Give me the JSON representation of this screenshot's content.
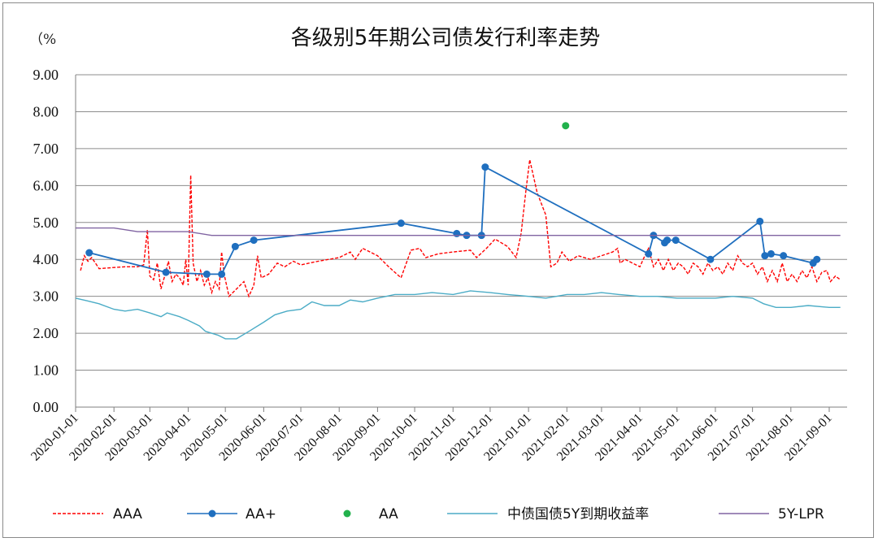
{
  "chart_data": {
    "type": "line",
    "title": "各级别5年期公司债发行利率走势",
    "unit_label": "（%",
    "ylim": [
      0,
      9
    ],
    "yticks": [
      "0.00",
      "1.00",
      "2.00",
      "3.00",
      "4.00",
      "5.00",
      "6.00",
      "7.00",
      "8.00",
      "9.00"
    ],
    "x_tick_labels": [
      "2020-01-01",
      "2020-02-01",
      "2020-03-01",
      "2020-04-01",
      "2020-05-01",
      "2020-06-01",
      "2020-07-01",
      "2020-08-01",
      "2020-09-01",
      "2020-10-01",
      "2020-11-01",
      "2020-12-01",
      "2021-01-01",
      "2021-02-01",
      "2021-03-01",
      "2021-04-01",
      "2021-05-01",
      "2021-06-01",
      "2021-07-01",
      "2021-08-01",
      "2021-09-01"
    ],
    "x_range": [
      "2020-01-01",
      "2021-09-01"
    ],
    "grid": "horizontal",
    "legend_position": "bottom",
    "series": [
      {
        "name": "AAA",
        "style": "dashed",
        "color": "#ff0000",
        "points": [
          [
            "2020-01-05",
            3.7
          ],
          [
            "2020-01-08",
            4.1
          ],
          [
            "2020-01-11",
            3.95
          ],
          [
            "2020-01-14",
            4.05
          ],
          [
            "2020-01-17",
            3.9
          ],
          [
            "2020-01-20",
            3.75
          ],
          [
            "2020-02-01",
            3.78
          ],
          [
            "2020-02-10",
            3.8
          ],
          [
            "2020-02-20",
            3.8
          ],
          [
            "2020-02-25",
            3.85
          ],
          [
            "2020-02-28",
            4.8
          ],
          [
            "2020-03-01",
            3.55
          ],
          [
            "2020-03-04",
            3.45
          ],
          [
            "2020-03-07",
            3.9
          ],
          [
            "2020-03-10",
            3.2
          ],
          [
            "2020-03-13",
            3.55
          ],
          [
            "2020-03-16",
            3.95
          ],
          [
            "2020-03-19",
            3.4
          ],
          [
            "2020-03-22",
            3.6
          ],
          [
            "2020-03-25",
            3.5
          ],
          [
            "2020-03-28",
            3.3
          ],
          [
            "2020-03-30",
            4.0
          ],
          [
            "2020-04-01",
            3.3
          ],
          [
            "2020-04-03",
            6.28
          ],
          [
            "2020-04-05",
            3.9
          ],
          [
            "2020-04-08",
            3.4
          ],
          [
            "2020-04-11",
            3.7
          ],
          [
            "2020-04-14",
            3.3
          ],
          [
            "2020-04-17",
            3.5
          ],
          [
            "2020-04-20",
            3.1
          ],
          [
            "2020-04-23",
            3.4
          ],
          [
            "2020-04-26",
            3.2
          ],
          [
            "2020-04-28",
            4.2
          ],
          [
            "2020-04-30",
            3.6
          ],
          [
            "2020-05-04",
            3.0
          ],
          [
            "2020-05-10",
            3.2
          ],
          [
            "2020-05-16",
            3.4
          ],
          [
            "2020-05-20",
            3.0
          ],
          [
            "2020-05-24",
            3.3
          ],
          [
            "2020-05-27",
            4.1
          ],
          [
            "2020-05-30",
            3.5
          ],
          [
            "2020-06-05",
            3.6
          ],
          [
            "2020-06-12",
            3.9
          ],
          [
            "2020-06-18",
            3.8
          ],
          [
            "2020-06-25",
            3.95
          ],
          [
            "2020-07-01",
            3.85
          ],
          [
            "2020-07-15",
            3.95
          ],
          [
            "2020-08-01",
            4.05
          ],
          [
            "2020-08-10",
            4.2
          ],
          [
            "2020-08-14",
            4.0
          ],
          [
            "2020-08-20",
            4.3
          ],
          [
            "2020-09-01",
            4.1
          ],
          [
            "2020-09-10",
            3.8
          ],
          [
            "2020-09-20",
            3.5
          ],
          [
            "2020-09-28",
            4.25
          ],
          [
            "2020-10-05",
            4.3
          ],
          [
            "2020-10-10",
            4.05
          ],
          [
            "2020-10-20",
            4.15
          ],
          [
            "2020-11-01",
            4.2
          ],
          [
            "2020-11-15",
            4.25
          ],
          [
            "2020-11-20",
            4.05
          ],
          [
            "2020-11-28",
            4.3
          ],
          [
            "2020-12-05",
            4.55
          ],
          [
            "2020-12-15",
            4.35
          ],
          [
            "2020-12-22",
            4.05
          ],
          [
            "2020-12-26",
            4.7
          ],
          [
            "2020-12-30",
            5.9
          ],
          [
            "2021-01-02",
            6.7
          ],
          [
            "2021-01-08",
            5.8
          ],
          [
            "2021-01-15",
            5.2
          ],
          [
            "2021-01-19",
            3.8
          ],
          [
            "2021-01-24",
            3.9
          ],
          [
            "2021-01-28",
            4.2
          ],
          [
            "2021-02-03",
            3.95
          ],
          [
            "2021-02-10",
            4.1
          ],
          [
            "2021-02-20",
            4.0
          ],
          [
            "2021-03-01",
            4.1
          ],
          [
            "2021-03-10",
            4.2
          ],
          [
            "2021-03-14",
            4.3
          ],
          [
            "2021-03-16",
            3.9
          ],
          [
            "2021-03-20",
            4.0
          ],
          [
            "2021-04-01",
            3.8
          ],
          [
            "2021-04-05",
            4.1
          ],
          [
            "2021-04-08",
            4.3
          ],
          [
            "2021-04-12",
            3.8
          ],
          [
            "2021-04-16",
            4.0
          ],
          [
            "2021-04-20",
            3.7
          ],
          [
            "2021-04-24",
            4.0
          ],
          [
            "2021-04-28",
            3.7
          ],
          [
            "2021-05-02",
            3.9
          ],
          [
            "2021-05-06",
            3.8
          ],
          [
            "2021-05-10",
            3.6
          ],
          [
            "2021-05-14",
            3.9
          ],
          [
            "2021-05-18",
            3.8
          ],
          [
            "2021-05-22",
            3.6
          ],
          [
            "2021-05-26",
            3.9
          ],
          [
            "2021-05-30",
            3.7
          ],
          [
            "2021-06-03",
            3.8
          ],
          [
            "2021-06-07",
            3.6
          ],
          [
            "2021-06-11",
            3.9
          ],
          [
            "2021-06-15",
            3.7
          ],
          [
            "2021-06-19",
            4.1
          ],
          [
            "2021-06-23",
            3.9
          ],
          [
            "2021-06-27",
            3.8
          ],
          [
            "2021-07-01",
            3.9
          ],
          [
            "2021-07-05",
            3.6
          ],
          [
            "2021-07-09",
            3.8
          ],
          [
            "2021-07-13",
            3.4
          ],
          [
            "2021-07-17",
            3.7
          ],
          [
            "2021-07-21",
            3.4
          ],
          [
            "2021-07-25",
            3.9
          ],
          [
            "2021-07-29",
            3.4
          ],
          [
            "2021-08-02",
            3.6
          ],
          [
            "2021-08-06",
            3.4
          ],
          [
            "2021-08-10",
            3.7
          ],
          [
            "2021-08-14",
            3.5
          ],
          [
            "2021-08-18",
            3.8
          ],
          [
            "2021-08-22",
            3.4
          ],
          [
            "2021-08-26",
            3.65
          ],
          [
            "2021-08-30",
            3.7
          ],
          [
            "2021-09-02",
            3.4
          ],
          [
            "2021-09-06",
            3.55
          ],
          [
            "2021-09-10",
            3.45
          ]
        ]
      },
      {
        "name": "AA+",
        "style": "line-marker",
        "color": "#1f6fbf",
        "points": [
          [
            "2020-01-12",
            4.18
          ],
          [
            "2020-03-14",
            3.65
          ],
          [
            "2020-04-16",
            3.6
          ],
          [
            "2020-04-28",
            3.6
          ],
          [
            "2020-05-09",
            4.35
          ],
          [
            "2020-05-24",
            4.52
          ],
          [
            "2020-09-20",
            4.98
          ],
          [
            "2020-11-04",
            4.7
          ],
          [
            "2020-11-12",
            4.65
          ],
          [
            "2020-11-24",
            4.65
          ],
          [
            "2020-11-27",
            6.5
          ],
          [
            "2021-04-08",
            4.15
          ],
          [
            "2021-04-12",
            4.65
          ],
          [
            "2021-04-21",
            4.45
          ],
          [
            "2021-04-23",
            4.52
          ],
          [
            "2021-04-30",
            4.52
          ],
          [
            "2021-05-28",
            4.0
          ],
          [
            "2021-07-07",
            5.03
          ],
          [
            "2021-07-11",
            4.1
          ],
          [
            "2021-07-16",
            4.15
          ],
          [
            "2021-07-26",
            4.1
          ],
          [
            "2021-08-19",
            3.9
          ],
          [
            "2021-08-22",
            4.0
          ]
        ]
      },
      {
        "name": "AA",
        "style": "marker",
        "color": "#22b14c",
        "points": [
          [
            "2021-01-31",
            7.62
          ]
        ]
      },
      {
        "name": "中债国债5Y到期收益率",
        "style": "solid",
        "color": "#4bacc6",
        "points": [
          [
            "2020-01-01",
            2.95
          ],
          [
            "2020-01-10",
            2.88
          ],
          [
            "2020-01-20",
            2.8
          ],
          [
            "2020-02-01",
            2.65
          ],
          [
            "2020-02-10",
            2.6
          ],
          [
            "2020-02-20",
            2.65
          ],
          [
            "2020-03-01",
            2.55
          ],
          [
            "2020-03-10",
            2.45
          ],
          [
            "2020-03-15",
            2.55
          ],
          [
            "2020-03-25",
            2.45
          ],
          [
            "2020-04-01",
            2.35
          ],
          [
            "2020-04-10",
            2.2
          ],
          [
            "2020-04-15",
            2.05
          ],
          [
            "2020-04-25",
            1.95
          ],
          [
            "2020-05-01",
            1.85
          ],
          [
            "2020-05-10",
            1.85
          ],
          [
            "2020-05-20",
            2.05
          ],
          [
            "2020-06-01",
            2.3
          ],
          [
            "2020-06-10",
            2.5
          ],
          [
            "2020-06-20",
            2.6
          ],
          [
            "2020-07-01",
            2.65
          ],
          [
            "2020-07-10",
            2.85
          ],
          [
            "2020-07-20",
            2.75
          ],
          [
            "2020-08-01",
            2.75
          ],
          [
            "2020-08-10",
            2.9
          ],
          [
            "2020-08-20",
            2.85
          ],
          [
            "2020-09-01",
            2.95
          ],
          [
            "2020-09-15",
            3.05
          ],
          [
            "2020-10-01",
            3.05
          ],
          [
            "2020-10-15",
            3.1
          ],
          [
            "2020-11-01",
            3.05
          ],
          [
            "2020-11-15",
            3.15
          ],
          [
            "2020-12-01",
            3.1
          ],
          [
            "2020-12-15",
            3.05
          ],
          [
            "2021-01-01",
            3.0
          ],
          [
            "2021-01-15",
            2.95
          ],
          [
            "2021-02-01",
            3.05
          ],
          [
            "2021-02-15",
            3.05
          ],
          [
            "2021-03-01",
            3.1
          ],
          [
            "2021-03-15",
            3.05
          ],
          [
            "2021-04-01",
            3.0
          ],
          [
            "2021-04-15",
            3.0
          ],
          [
            "2021-05-01",
            2.95
          ],
          [
            "2021-05-15",
            2.95
          ],
          [
            "2021-06-01",
            2.95
          ],
          [
            "2021-06-15",
            3.0
          ],
          [
            "2021-07-01",
            2.95
          ],
          [
            "2021-07-10",
            2.8
          ],
          [
            "2021-07-20",
            2.7
          ],
          [
            "2021-08-01",
            2.7
          ],
          [
            "2021-08-15",
            2.75
          ],
          [
            "2021-09-01",
            2.7
          ],
          [
            "2021-09-10",
            2.7
          ]
        ]
      },
      {
        "name": "5Y-LPR",
        "style": "solid",
        "color": "#8064a2",
        "points": [
          [
            "2020-01-01",
            4.85
          ],
          [
            "2020-02-01",
            4.85
          ],
          [
            "2020-02-20",
            4.75
          ],
          [
            "2020-04-01",
            4.75
          ],
          [
            "2020-04-20",
            4.65
          ],
          [
            "2021-09-10",
            4.65
          ]
        ]
      }
    ]
  }
}
